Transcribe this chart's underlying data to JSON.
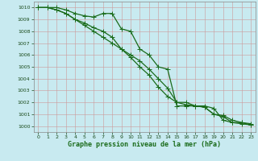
{
  "title": "Graphe pression niveau de la mer (hPa)",
  "bg_color": "#c8eaf0",
  "grid_color_major": "#cc9999",
  "grid_color_minor": "#ddcccc",
  "line_color": "#1a6b1a",
  "xlim": [
    -0.5,
    23.5
  ],
  "ylim": [
    999.5,
    1010.5
  ],
  "xticks": [
    0,
    1,
    2,
    3,
    4,
    5,
    6,
    7,
    8,
    9,
    10,
    11,
    12,
    13,
    14,
    15,
    16,
    17,
    18,
    19,
    20,
    21,
    22,
    23
  ],
  "yticks": [
    1000,
    1001,
    1002,
    1003,
    1004,
    1005,
    1006,
    1007,
    1008,
    1009,
    1010
  ],
  "series1": [
    1010,
    1010,
    1010,
    1009.8,
    1009.5,
    1009.3,
    1009.2,
    1009.5,
    1009.5,
    1008.2,
    1008.0,
    1006.5,
    1006.0,
    1005.0,
    1004.8,
    1001.7,
    1001.7,
    1001.7,
    1001.7,
    1001.5,
    1000.5,
    1000.3,
    1000.3,
    1000.2
  ],
  "series2": [
    1010,
    1010,
    1009.8,
    1009.5,
    1009.0,
    1008.7,
    1008.3,
    1008.0,
    1007.5,
    1006.5,
    1005.8,
    1005.0,
    1004.3,
    1003.3,
    1002.5,
    1002.0,
    1002.0,
    1001.7,
    1001.6,
    1001.0,
    1000.9,
    1000.5,
    1000.3,
    1000.1
  ],
  "series3": [
    1010,
    1010,
    1009.8,
    1009.5,
    1009.0,
    1008.5,
    1008.0,
    1007.5,
    1007.0,
    1006.5,
    1006.0,
    1005.5,
    1004.8,
    1004.0,
    1003.2,
    1002.0,
    1001.8,
    1001.7,
    1001.6,
    1001.0,
    1000.8,
    1000.3,
    1000.2,
    1000.1
  ],
  "ylabel_fontsize": 5,
  "xlabel_fontsize": 6,
  "tick_fontsize": 4.5,
  "linewidth": 0.9,
  "markersize": 2.0
}
